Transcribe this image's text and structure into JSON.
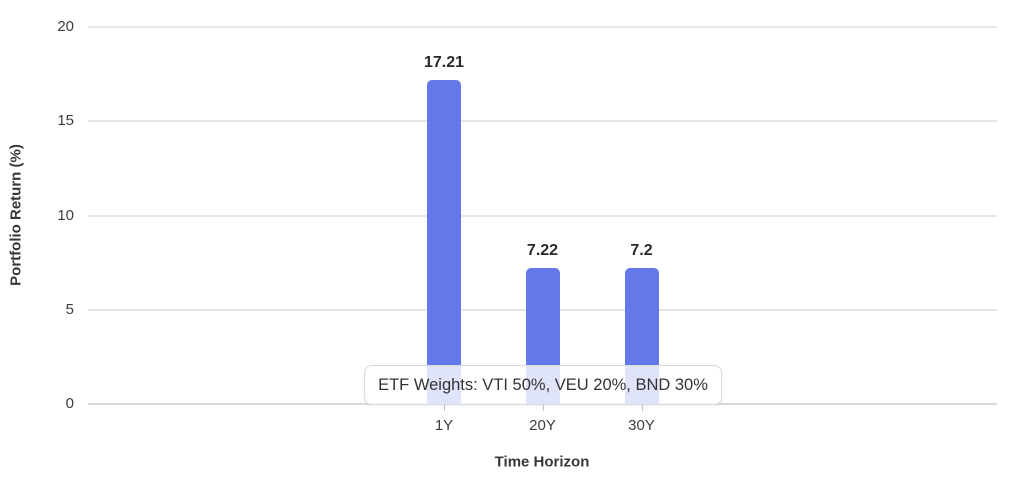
{
  "chart_data": {
    "type": "bar",
    "title": "",
    "xlabel": "Time Horizon",
    "ylabel": "Portfolio Return (%)",
    "categories": [
      "1Y",
      "20Y",
      "30Y"
    ],
    "values": [
      17.21,
      7.22,
      7.2
    ],
    "value_labels": [
      "17.21",
      "7.22",
      "7.2"
    ],
    "ylim": [
      0,
      20
    ],
    "yticks": [
      0,
      5,
      10,
      15,
      20
    ],
    "grid": "horizontal",
    "legend": "none",
    "annotation": "ETF Weights: VTI 50%, VEU 20%, BND 30%",
    "colors": {
      "bar": "#6379e9",
      "grid": "#e6e6e6",
      "axis_line": "#d9d9d9",
      "tick_text": "#3d3d3d",
      "title_text": "#383838",
      "annotation_bg": "rgba(255,255,255,0.8)",
      "annotation_border": "#d9d9d9"
    }
  }
}
